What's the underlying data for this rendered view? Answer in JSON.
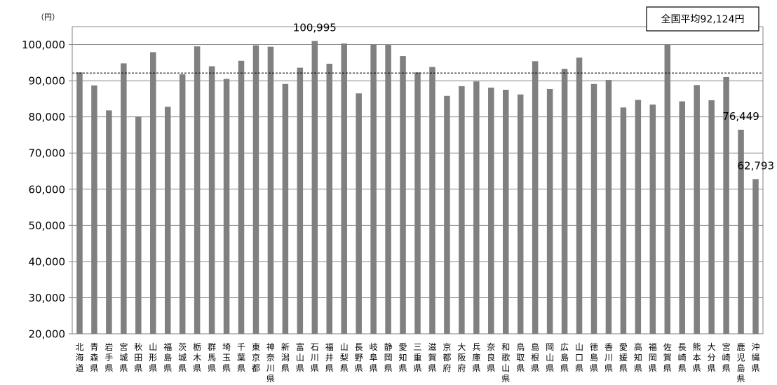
{
  "chart_data": {
    "type": "bar",
    "unit": "（円）",
    "ylim": [
      20000,
      110000
    ],
    "yticks": [
      20000,
      30000,
      40000,
      50000,
      60000,
      70000,
      80000,
      90000,
      100000
    ],
    "ytick_labels": [
      "20,000",
      "30,000",
      "40,000",
      "50,000",
      "60,000",
      "70,000",
      "80,000",
      "90,000",
      "100,000"
    ],
    "grid": true,
    "bar_color": "#808080",
    "reference_line": {
      "value": 92124,
      "label": "全国平均92,124円",
      "style": "dashed",
      "label_position": "top-right"
    },
    "categories": [
      "北海道",
      "青森県",
      "岩手県",
      "宮城県",
      "秋田県",
      "山形県",
      "福島県",
      "茨城県",
      "栃木県",
      "群馬県",
      "埼玉県",
      "千葉県",
      "東京都",
      "神奈川県",
      "新潟県",
      "富山県",
      "石川県",
      "福井県",
      "山梨県",
      "長野県",
      "岐阜県",
      "静岡県",
      "愛知県",
      "三重県",
      "滋賀県",
      "京都府",
      "大阪府",
      "兵庫県",
      "奈良県",
      "和歌山県",
      "鳥取県",
      "島根県",
      "岡山県",
      "広島県",
      "山口県",
      "徳島県",
      "香川県",
      "愛媛県",
      "高知県",
      "福岡県",
      "佐賀県",
      "長崎県",
      "熊本県",
      "大分県",
      "宮崎県",
      "鹿児島県",
      "沖縄県"
    ],
    "values": [
      92300,
      88700,
      81800,
      94800,
      80100,
      97900,
      82800,
      91800,
      99500,
      94000,
      90500,
      95500,
      99800,
      99400,
      89100,
      93600,
      100995,
      94700,
      100300,
      86500,
      100100,
      99900,
      96800,
      92300,
      93800,
      85800,
      88500,
      89800,
      88100,
      87500,
      86200,
      95400,
      87700,
      93300,
      96400,
      89100,
      90200,
      82600,
      84700,
      83400,
      100000,
      84300,
      88800,
      84600,
      91000,
      76449,
      62793
    ],
    "data_labels": [
      {
        "index": 16,
        "text": "100,995"
      },
      {
        "index": 45,
        "text": "76,449"
      },
      {
        "index": 46,
        "text": "62,793"
      }
    ]
  }
}
